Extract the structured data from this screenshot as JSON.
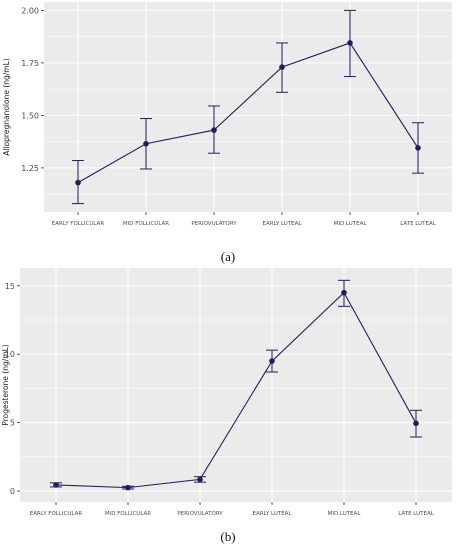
{
  "chart_data": [
    {
      "type": "line",
      "caption": "(a)",
      "title": "",
      "xlabel": "",
      "ylabel": "Allopregnanolone (ng/mL)",
      "categories": [
        "EARLY FOLLICULAR",
        "MID FOLLICULAR",
        "PERIOVULATORY",
        "EARLY LUTEAL",
        "MID LUTEAL",
        "LATE LUTEAL"
      ],
      "series": [
        {
          "values": [
            1.18,
            1.365,
            1.43,
            1.73,
            1.845,
            1.345
          ],
          "error_low": [
            1.08,
            1.245,
            1.32,
            1.61,
            1.685,
            1.225
          ],
          "error_high": [
            1.285,
            1.485,
            1.545,
            1.845,
            2.0,
            1.465
          ]
        }
      ],
      "yticks": [
        "1.25",
        "1.50",
        "1.75",
        "2.00"
      ],
      "ylim": [
        1.04,
        2.04
      ],
      "grid": true,
      "colors": {
        "line": "#1f1f5c",
        "panel": "#ebebeb",
        "grid": "#ffffff"
      }
    },
    {
      "type": "line",
      "caption": "(b)",
      "title": "",
      "xlabel": "",
      "ylabel": "Progesterone (ng/mL)",
      "categories": [
        "EARLY FOLLICULAR",
        "MID FOLLICULAR",
        "PERIOVULATORY",
        "EARLY LUTEAL",
        "MID LUTEAL",
        "LATE LUTEAL"
      ],
      "series": [
        {
          "values": [
            0.45,
            0.25,
            0.85,
            9.5,
            14.5,
            4.95
          ],
          "error_low": [
            0.3,
            0.15,
            0.65,
            8.7,
            13.5,
            3.95
          ],
          "error_high": [
            0.6,
            0.35,
            1.05,
            10.3,
            15.4,
            5.9
          ]
        }
      ],
      "yticks": [
        "0",
        "5",
        "10",
        "15"
      ],
      "ylim": [
        -0.8,
        16.3
      ],
      "grid": true,
      "colors": {
        "line": "#1f1f5c",
        "panel": "#ebebeb",
        "grid": "#ffffff"
      }
    }
  ]
}
